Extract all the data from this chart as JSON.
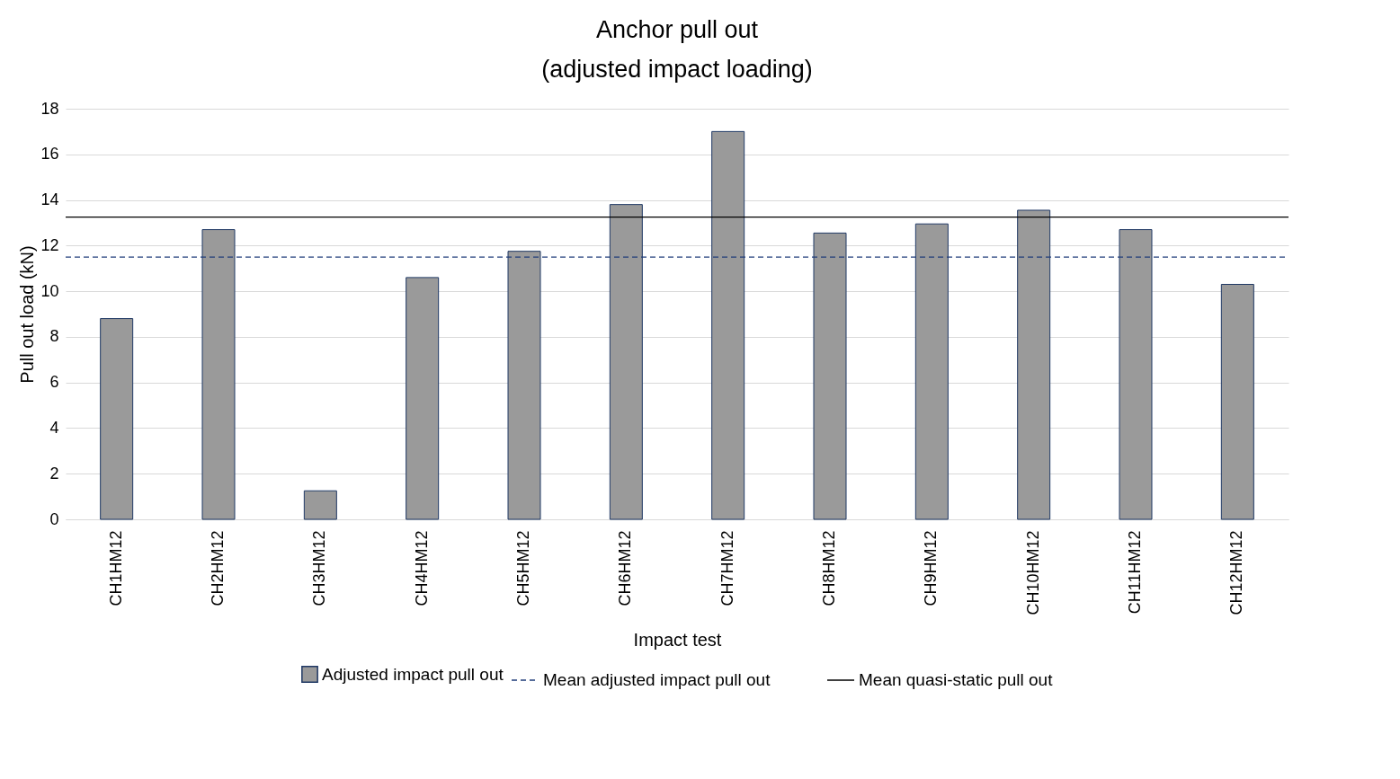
{
  "chart_data": {
    "type": "bar",
    "title": "Anchor pull out\n(adjusted impact loading)",
    "xlabel": "Impact test",
    "ylabel": "Pull out load (kN)",
    "categories": [
      "CH1HM12",
      "CH2HM12",
      "CH3HM12",
      "CH4HM12",
      "CH5HM12",
      "CH6HM12",
      "CH7HM12",
      "CH8HM12",
      "CH9HM12",
      "CH10HM12",
      "CH11HM12",
      "CH12HM12"
    ],
    "series": [
      {
        "name": "Adjusted impact pull out",
        "color": "#9a9a9a",
        "values": [
          8.8,
          12.7,
          1.25,
          10.6,
          11.75,
          13.8,
          17.0,
          12.55,
          12.95,
          13.55,
          12.7,
          10.3
        ]
      }
    ],
    "ylim": [
      0,
      18
    ],
    "yticks": [
      0,
      2,
      4,
      6,
      8,
      10,
      12,
      14,
      16,
      18
    ],
    "grid": "y",
    "legend": "bottom",
    "ref_lines": [
      {
        "axis": "y",
        "value": 11.5,
        "label": "Mean adjusted impact pull out",
        "color": "#1f3d7a",
        "line_style": "dashed"
      },
      {
        "axis": "y",
        "value": 13.25,
        "label": "Mean quasi-static pull out",
        "color": "#000000",
        "line_style": "solid"
      }
    ]
  }
}
